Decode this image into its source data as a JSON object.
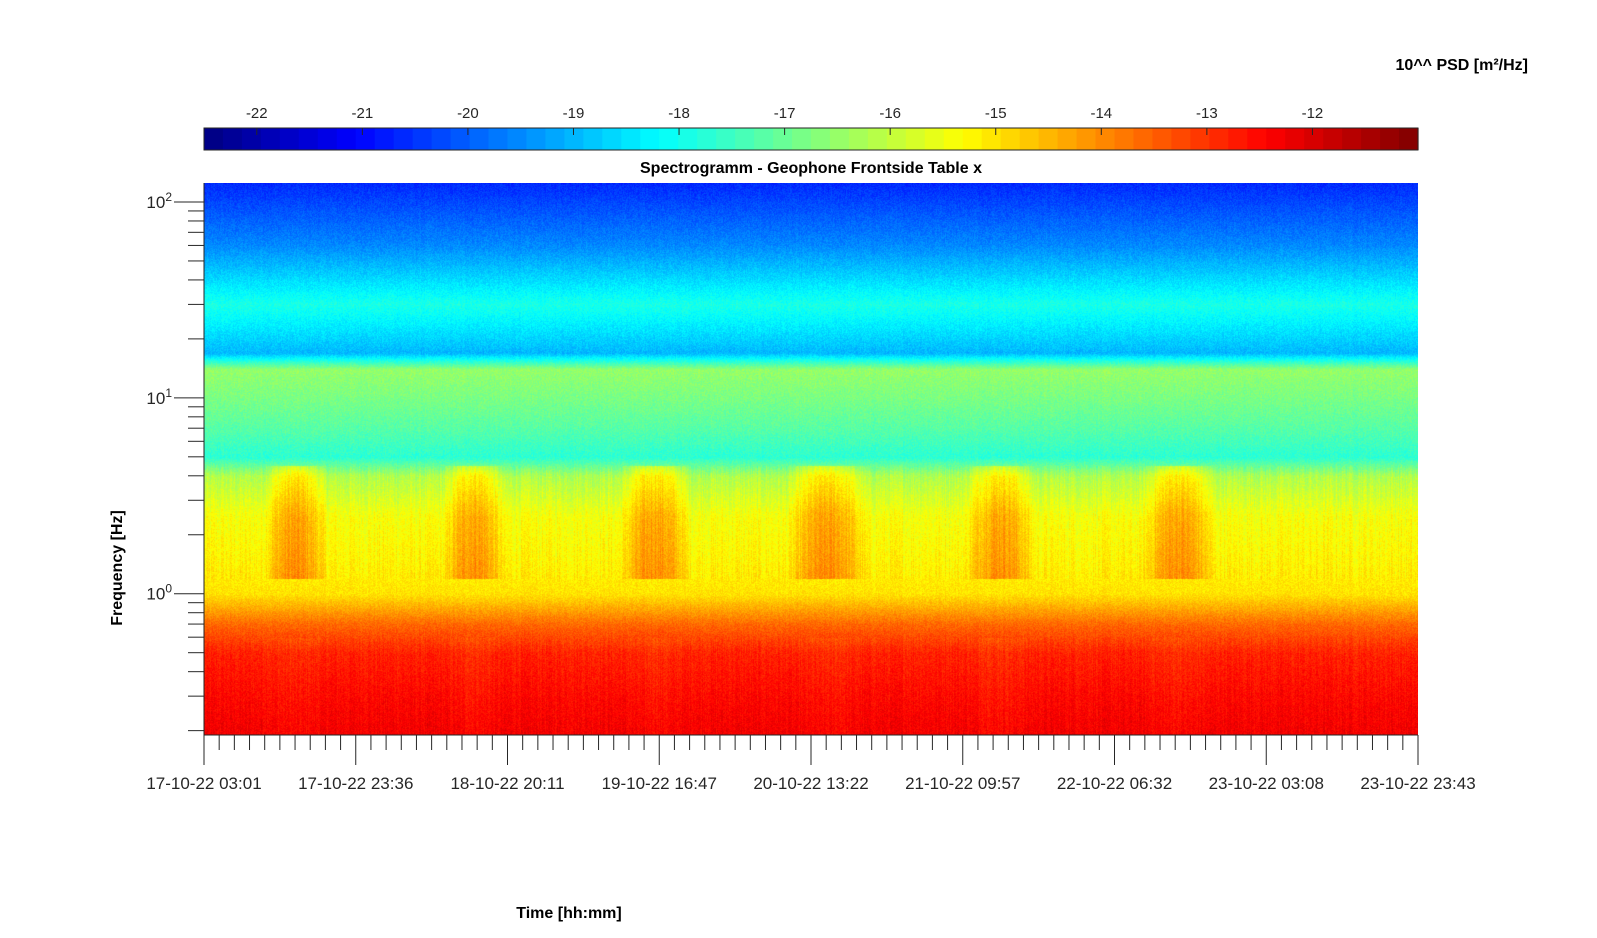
{
  "chart_data": {
    "type": "heatmap",
    "title": "Spectrogramm - Geophone Frontside Table x",
    "xlabel": "Time [hh:mm]",
    "ylabel": "Frequency [Hz]",
    "colorbar": {
      "label": "10^^ PSD [m²/Hz]",
      "ticks": [
        "-22",
        "-21",
        "-20",
        "-19",
        "-18",
        "-17",
        "-16",
        "-15",
        "-14",
        "-13",
        "-12"
      ],
      "range": [
        -22.5,
        -11.0
      ],
      "colormap": "jet",
      "location": "top"
    },
    "y_scale": "log",
    "y_range": [
      0.19,
      125
    ],
    "y_ticks": [
      {
        "value": 1,
        "base": "10",
        "exp": "0"
      },
      {
        "value": 10,
        "base": "10",
        "exp": "1"
      },
      {
        "value": 100,
        "base": "10",
        "exp": "2"
      }
    ],
    "x_ticks": [
      "17-10-22 03:01",
      "17-10-22 23:36",
      "18-10-22 20:11",
      "19-10-22 16:47",
      "20-10-22 13:22",
      "21-10-22 09:57",
      "22-10-22 06:32",
      "23-10-22 03:08",
      "23-10-22 23:43"
    ],
    "x_range_days": 6.867,
    "band_profile": [
      {
        "freq": 0.19,
        "level": -12.3
      },
      {
        "freq": 0.3,
        "level": -12.5
      },
      {
        "freq": 0.5,
        "level": -12.8
      },
      {
        "freq": 0.7,
        "level": -13.6
      },
      {
        "freq": 1.0,
        "level": -15.0
      },
      {
        "freq": 1.5,
        "level": -15.2
      },
      {
        "freq": 2.5,
        "level": -15.4
      },
      {
        "freq": 4.0,
        "level": -16.2
      },
      {
        "freq": 5.0,
        "level": -17.7
      },
      {
        "freq": 7.0,
        "level": -17.2
      },
      {
        "freq": 10.0,
        "level": -16.8
      },
      {
        "freq": 14.0,
        "level": -16.5
      },
      {
        "freq": 17.0,
        "level": -19.0
      },
      {
        "freq": 30.0,
        "level": -17.9
      },
      {
        "freq": 60.0,
        "level": -19.5
      },
      {
        "freq": 125.0,
        "level": -20.6
      }
    ],
    "activity_windows_days": [
      [
        0.33,
        0.7
      ],
      [
        1.35,
        1.7
      ],
      [
        2.35,
        2.75
      ],
      [
        3.3,
        3.75
      ],
      [
        4.3,
        4.7
      ],
      [
        5.3,
        5.72
      ]
    ],
    "grid": false
  }
}
